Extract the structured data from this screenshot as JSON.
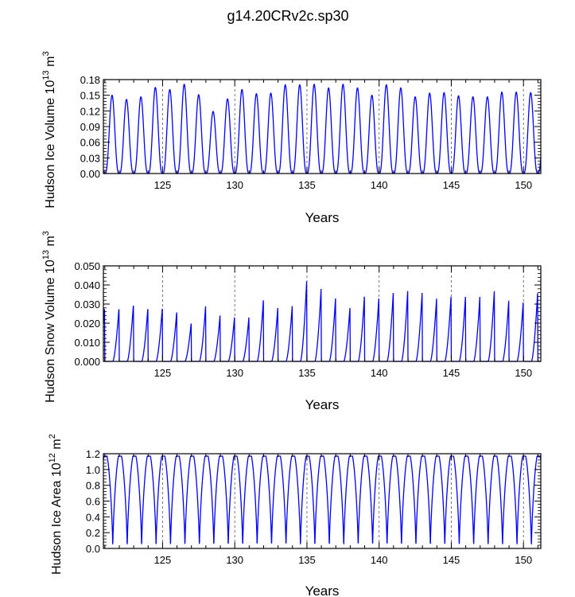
{
  "figure_title": "g14.20CRv2c.sp30",
  "chart_data": [
    {
      "type": "line",
      "name": "ice-volume",
      "title": "",
      "xlabel": "Years",
      "ylabel": "Hudson Ice Volume 10",
      "ylabel_exp": "13",
      "ylabel_unit": " m",
      "ylabel_unit_exp": "3",
      "xlim": [
        120.9,
        151.2
      ],
      "ylim": [
        0,
        0.18
      ],
      "xticks": [
        125,
        130,
        135,
        140,
        145,
        150
      ],
      "xtick_labels": [
        "125",
        "130",
        "135",
        "140",
        "145",
        "150"
      ],
      "yticks": [
        0.0,
        0.03,
        0.06,
        0.09,
        0.12,
        0.15,
        0.18
      ],
      "ytick_labels": [
        "0.00",
        "0.03",
        "0.06",
        "0.09",
        "0.12",
        "0.15",
        "0.18"
      ],
      "series": [
        {
          "name": "Hudson Ice Volume",
          "color": "#0000ff",
          "years": [
            121,
            122,
            123,
            124,
            125,
            126,
            127,
            128,
            129,
            130,
            131,
            132,
            133,
            134,
            135,
            136,
            137,
            138,
            139,
            140,
            141,
            142,
            143,
            144,
            145,
            146,
            147,
            148,
            149,
            150
          ],
          "peaks": [
            0.15,
            0.142,
            0.147,
            0.165,
            0.161,
            0.171,
            0.151,
            0.119,
            0.143,
            0.161,
            0.153,
            0.154,
            0.17,
            0.17,
            0.171,
            0.164,
            0.171,
            0.164,
            0.15,
            0.17,
            0.164,
            0.147,
            0.154,
            0.155,
            0.149,
            0.147,
            0.147,
            0.156,
            0.156,
            0.155
          ]
        }
      ]
    },
    {
      "type": "line",
      "name": "snow-volume",
      "title": "",
      "xlabel": "Years",
      "ylabel": "Hudson Snow Volume 10",
      "ylabel_exp": "13",
      "ylabel_unit": " m",
      "ylabel_unit_exp": "3",
      "xlim": [
        120.9,
        151.2
      ],
      "ylim": [
        0,
        0.05
      ],
      "xticks": [
        125,
        130,
        135,
        140,
        145,
        150
      ],
      "xtick_labels": [
        "125",
        "130",
        "135",
        "140",
        "145",
        "150"
      ],
      "yticks": [
        0.0,
        0.01,
        0.02,
        0.03,
        0.04,
        0.05
      ],
      "ytick_labels": [
        "0.000",
        "0.010",
        "0.020",
        "0.030",
        "0.040",
        "0.050"
      ],
      "series": [
        {
          "name": "Hudson Snow Volume",
          "color": "#0000ff",
          "years": [
            121,
            122,
            123,
            124,
            125,
            126,
            127,
            128,
            129,
            130,
            131,
            132,
            133,
            134,
            135,
            136,
            137,
            138,
            139,
            140,
            141,
            142,
            143,
            144,
            145,
            146,
            147,
            148,
            149,
            150
          ],
          "peaks": [
            0.028,
            0.03,
            0.028,
            0.028,
            0.026,
            0.02,
            0.029,
            0.024,
            0.023,
            0.023,
            0.032,
            0.028,
            0.029,
            0.042,
            0.038,
            0.033,
            0.028,
            0.034,
            0.033,
            0.036,
            0.037,
            0.036,
            0.033,
            0.034,
            0.034,
            0.034,
            0.037,
            0.032,
            0.031,
            0.036
          ]
        }
      ]
    },
    {
      "type": "line",
      "name": "ice-area",
      "title": "",
      "xlabel": "Years",
      "ylabel": "Hudson Ice Area 10",
      "ylabel_exp": "12",
      "ylabel_unit": " m",
      "ylabel_unit_exp": "2",
      "xlim": [
        120.9,
        151.2
      ],
      "ylim": [
        0,
        1.2
      ],
      "xticks": [
        125,
        130,
        135,
        140,
        145,
        150
      ],
      "xtick_labels": [
        "125",
        "130",
        "135",
        "140",
        "145",
        "150"
      ],
      "yticks": [
        0.0,
        0.2,
        0.4,
        0.6,
        0.8,
        1.0,
        1.2
      ],
      "ytick_labels": [
        "0.0",
        "0.2",
        "0.4",
        "0.6",
        "0.8",
        "1.0",
        "1.2"
      ],
      "series": [
        {
          "name": "Hudson Ice Area",
          "color": "#0000ff",
          "years": [
            121,
            122,
            123,
            124,
            125,
            126,
            127,
            128,
            129,
            130,
            131,
            132,
            133,
            134,
            135,
            136,
            137,
            138,
            139,
            140,
            141,
            142,
            143,
            144,
            145,
            146,
            147,
            148,
            149,
            150
          ],
          "peaks": [
            1.17,
            1.17,
            1.17,
            1.17,
            1.17,
            1.17,
            1.17,
            1.17,
            1.17,
            1.17,
            1.17,
            1.17,
            1.17,
            1.17,
            1.17,
            1.17,
            1.17,
            1.17,
            1.17,
            1.17,
            1.17,
            1.17,
            1.17,
            1.17,
            1.17,
            1.17,
            1.17,
            1.17,
            1.17,
            1.17
          ]
        }
      ]
    }
  ]
}
